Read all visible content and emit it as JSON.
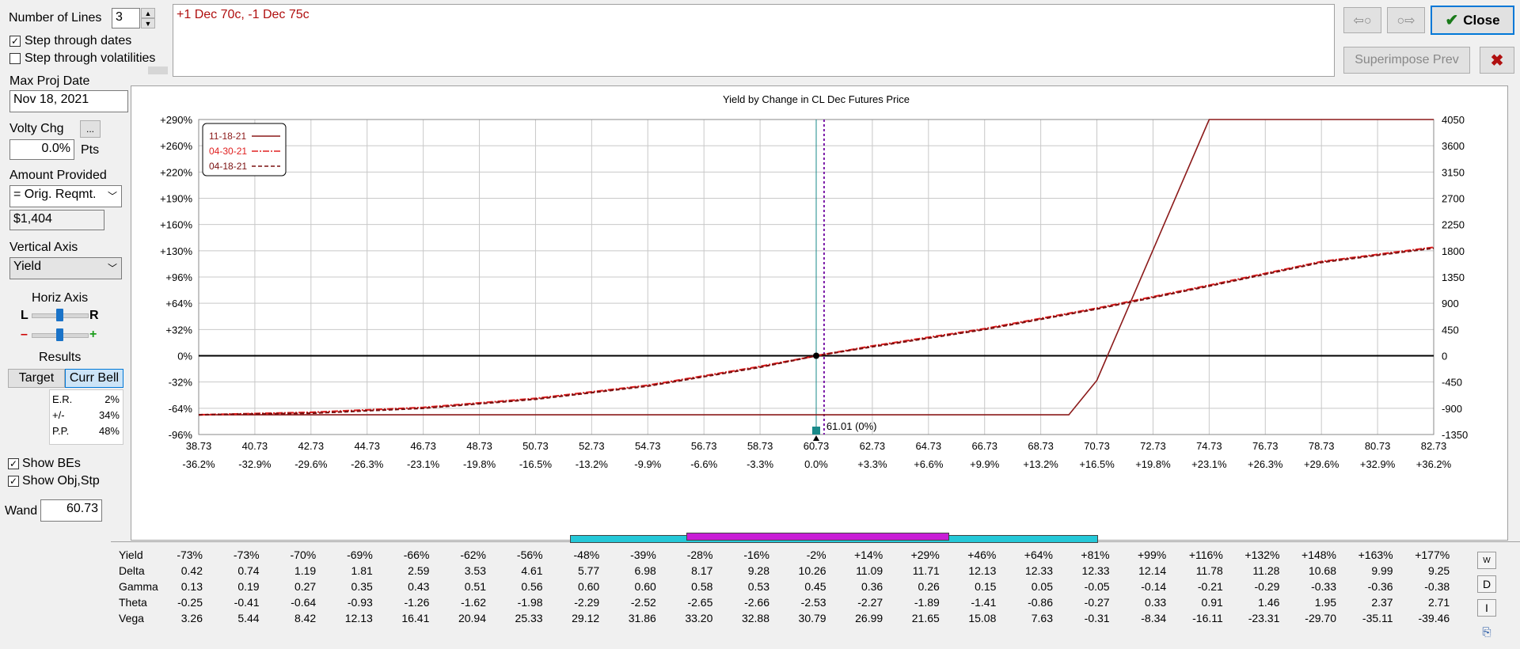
{
  "left_panel": {
    "num_lines_label": "Number of Lines",
    "num_lines_value": "3",
    "step_dates_label": "Step through dates",
    "step_dates_checked": true,
    "step_vols_label": "Step through volatilities",
    "step_vols_checked": false,
    "max_proj_date_label": "Max Proj Date",
    "max_proj_date_value": "Nov 18, 2021",
    "volty_chg_label": "Volty Chg",
    "volty_chg_button": "...",
    "volty_chg_value": "0.0%",
    "volty_chg_unit": "Pts",
    "amount_provided_label": "Amount Provided",
    "amount_provided_select": "= Orig. Reqmt.",
    "amount_value": "$1,404",
    "vertical_axis_label": "Vertical Axis",
    "vertical_axis_select": "Yield",
    "horiz_axis_label": "Horiz Axis",
    "horiz_l": "L",
    "horiz_r": "R",
    "zoom_minus": "–",
    "zoom_plus": "+",
    "results_label": "Results",
    "target_button": "Target",
    "curr_bell_button": "Curr Bell",
    "stats": [
      {
        "label": "E.R.",
        "value": "2%"
      },
      {
        "label": "+/-",
        "value": "34%"
      },
      {
        "label": "P.P.",
        "value": "48%"
      }
    ],
    "show_bes_label": "Show BEs",
    "show_bes_checked": true,
    "show_objstp_label": "Show Obj,Stp",
    "show_objstp_checked": true,
    "wand_label": "Wand",
    "wand_value": "60.73"
  },
  "position_text": "+1 Dec 70c, -1 Dec 75c",
  "top_right": {
    "back_arrow": "⇦○",
    "fwd_arrow": "○⇨",
    "close_label": "Close",
    "close_icon": "check-icon",
    "superimpose_label": "Superimpose Prev",
    "x_icon": "close-x-icon"
  },
  "chart_data": {
    "type": "line",
    "title": "Yield by Change in CL Dec Futures Price",
    "x_ticks": [
      "38.73",
      "40.73",
      "42.73",
      "44.73",
      "46.73",
      "48.73",
      "50.73",
      "52.73",
      "54.73",
      "56.73",
      "58.73",
      "60.73",
      "62.73",
      "64.73",
      "66.73",
      "68.73",
      "70.73",
      "72.73",
      "74.73",
      "76.73",
      "78.73",
      "80.73",
      "82.73"
    ],
    "x_pct_ticks": [
      "-36.2%",
      "-32.9%",
      "-29.6%",
      "-26.3%",
      "-23.1%",
      "-19.8%",
      "-16.5%",
      "-13.2%",
      "-9.9%",
      "-6.6%",
      "-3.3%",
      "0.0%",
      "+3.3%",
      "+6.6%",
      "+9.9%",
      "+13.2%",
      "+16.5%",
      "+19.8%",
      "+23.1%",
      "+26.3%",
      "+29.6%",
      "+32.9%",
      "+36.2%"
    ],
    "y_left_ticks": [
      "+290%",
      "+260%",
      "+220%",
      "+190%",
      "+160%",
      "+130%",
      "+96%",
      "+64%",
      "+32%",
      "0%",
      "-32%",
      "-64%",
      "-96%"
    ],
    "y_right_ticks": [
      "4050",
      "3600",
      "3150",
      "2700",
      "2250",
      "1800",
      "1350",
      "900",
      "450",
      "0",
      "-450",
      "-900",
      "-1350"
    ],
    "xlim": [
      38.73,
      82.73
    ],
    "ylim": [
      -96,
      290
    ],
    "grid": true,
    "legend_position": "top-left",
    "wand_x": 60.73,
    "current_x": 61.01,
    "current_label": "61.01 (0%)",
    "series": [
      {
        "name": "11-18-21",
        "color": "#8b1a1a",
        "style": "solid",
        "x": [
          38.73,
          69.73,
          70.73,
          74.73,
          82.73
        ],
        "y": [
          -72,
          -72,
          -30,
          290,
          290
        ]
      },
      {
        "name": "04-30-21",
        "color": "#e02020",
        "style": "dashdot",
        "x": [
          38.73,
          42.73,
          46.73,
          50.73,
          54.73,
          58.73,
          60.73,
          62.73,
          66.73,
          70.73,
          74.73,
          78.73,
          82.73
        ],
        "y": [
          -72,
          -69,
          -63,
          -52,
          -36,
          -13,
          0,
          12,
          33,
          58,
          86,
          116,
          134
        ]
      },
      {
        "name": "04-18-21",
        "color": "#7a1010",
        "style": "dashed",
        "x": [
          38.73,
          42.73,
          46.73,
          50.73,
          54.73,
          58.73,
          60.73,
          62.73,
          66.73,
          70.73,
          74.73,
          78.73,
          82.73
        ],
        "y": [
          -72,
          -70,
          -64,
          -53,
          -37,
          -14,
          0,
          11,
          32,
          57,
          85,
          115,
          133
        ]
      }
    ]
  },
  "table": {
    "rows": [
      {
        "label": "Yield",
        "values": [
          "-73%",
          "-73%",
          "-70%",
          "-69%",
          "-66%",
          "-62%",
          "-56%",
          "-48%",
          "-39%",
          "-28%",
          "-16%",
          "-2%",
          "+14%",
          "+29%",
          "+46%",
          "+64%",
          "+81%",
          "+99%",
          "+116%",
          "+132%",
          "+148%",
          "+163%",
          "+177%"
        ]
      },
      {
        "label": "Delta",
        "values": [
          "0.42",
          "0.74",
          "1.19",
          "1.81",
          "2.59",
          "3.53",
          "4.61",
          "5.77",
          "6.98",
          "8.17",
          "9.28",
          "10.26",
          "11.09",
          "11.71",
          "12.13",
          "12.33",
          "12.33",
          "12.14",
          "11.78",
          "11.28",
          "10.68",
          "9.99",
          "9.25"
        ]
      },
      {
        "label": "Gamma",
        "values": [
          "0.13",
          "0.19",
          "0.27",
          "0.35",
          "0.43",
          "0.51",
          "0.56",
          "0.60",
          "0.60",
          "0.58",
          "0.53",
          "0.45",
          "0.36",
          "0.26",
          "0.15",
          "0.05",
          "-0.05",
          "-0.14",
          "-0.21",
          "-0.29",
          "-0.33",
          "-0.36",
          "-0.38"
        ]
      },
      {
        "label": "Theta",
        "values": [
          "-0.25",
          "-0.41",
          "-0.64",
          "-0.93",
          "-1.26",
          "-1.62",
          "-1.98",
          "-2.29",
          "-2.52",
          "-2.65",
          "-2.66",
          "-2.53",
          "-2.27",
          "-1.89",
          "-1.41",
          "-0.86",
          "-0.27",
          "0.33",
          "0.91",
          "1.46",
          "1.95",
          "2.37",
          "2.71"
        ]
      },
      {
        "label": "Vega",
        "values": [
          "3.26",
          "5.44",
          "8.42",
          "12.13",
          "16.41",
          "20.94",
          "25.33",
          "29.12",
          "31.86",
          "33.20",
          "32.88",
          "30.79",
          "26.99",
          "21.65",
          "15.08",
          "7.63",
          "-0.31",
          "-8.34",
          "-16.11",
          "-23.31",
          "-29.70",
          "-35.11",
          "-39.46"
        ]
      }
    ],
    "side_buttons": [
      "W",
      "D",
      "I"
    ]
  }
}
